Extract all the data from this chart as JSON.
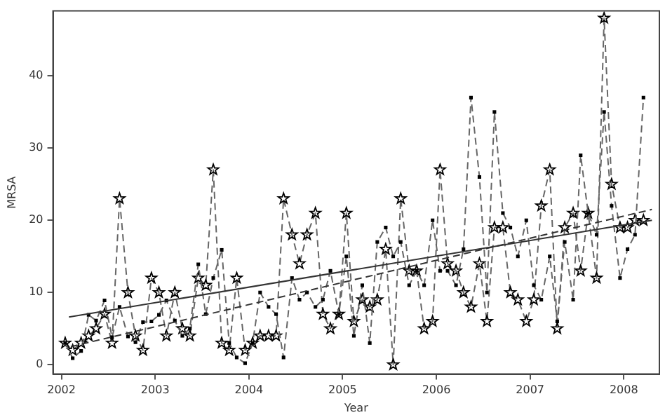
{
  "chart_data": {
    "type": "line",
    "xlabel": "Year",
    "ylabel": "MRSA",
    "xlim": [
      2001.91,
      2008.38
    ],
    "ylim": [
      -1.3,
      49
    ],
    "xticks": [
      2002,
      2003,
      2004,
      2005,
      2006,
      2007,
      2008
    ],
    "yticks": [
      0,
      10,
      20,
      30,
      40
    ],
    "grid": false,
    "legend": false,
    "series": [
      {
        "color": "#666666",
        "marker": "star",
        "line_style": "dashed",
        "x": [
          2002.04,
          2002.12,
          2002.21,
          2002.29,
          2002.37,
          2002.46,
          2002.54,
          2002.62,
          2002.71,
          2002.79,
          2002.87,
          2002.96,
          2003.04,
          2003.12,
          2003.21,
          2003.29,
          2003.37,
          2003.46,
          2003.54,
          2003.62,
          2003.71,
          2003.79,
          2003.87,
          2003.96,
          2004.04,
          2004.12,
          2004.21,
          2004.29,
          2004.37,
          2004.46,
          2004.54,
          2004.62,
          2004.71,
          2004.79,
          2004.87,
          2004.96,
          2005.04,
          2005.12,
          2005.21,
          2005.29,
          2005.37,
          2005.46,
          2005.54,
          2005.62,
          2005.71,
          2005.79,
          2005.87,
          2005.96,
          2006.04,
          2006.12,
          2006.21,
          2006.29,
          2006.37,
          2006.46,
          2006.54,
          2006.62,
          2006.71,
          2006.79,
          2006.87,
          2006.96,
          2007.04,
          2007.12,
          2007.21,
          2007.29,
          2007.37,
          2007.46,
          2007.54,
          2007.62,
          2007.71,
          2007.79,
          2007.87,
          2007.96,
          2008.04,
          2008.12,
          2008.21
        ],
        "values": [
          3,
          2,
          3,
          4,
          5,
          7,
          3,
          23,
          10,
          4,
          2,
          12,
          10,
          4,
          10,
          5,
          4,
          12,
          11,
          27,
          3,
          2,
          12,
          2,
          3,
          4,
          4,
          4,
          23,
          18,
          14,
          18,
          21,
          7,
          5,
          7,
          21,
          6,
          9,
          8,
          9,
          16,
          0,
          23,
          13,
          13,
          5,
          6,
          27,
          14,
          13,
          10,
          8,
          14,
          6,
          19,
          19,
          10,
          9,
          6,
          9,
          22,
          27,
          5,
          19,
          21,
          13,
          21,
          12,
          48,
          25,
          19,
          19,
          20,
          20
        ]
      },
      {
        "color": "#666666",
        "marker": "square",
        "line_style": "dashed",
        "x": [
          2002.04,
          2002.12,
          2002.21,
          2002.29,
          2002.37,
          2002.46,
          2002.54,
          2002.62,
          2002.71,
          2002.79,
          2002.87,
          2002.96,
          2003.04,
          2003.12,
          2003.21,
          2003.29,
          2003.37,
          2003.46,
          2003.54,
          2003.62,
          2003.71,
          2003.79,
          2003.87,
          2003.96,
          2004.04,
          2004.12,
          2004.21,
          2004.29,
          2004.37,
          2004.46,
          2004.54,
          2004.62,
          2004.71,
          2004.79,
          2004.87,
          2004.96,
          2005.04,
          2005.12,
          2005.21,
          2005.29,
          2005.37,
          2005.46,
          2005.54,
          2005.62,
          2005.71,
          2005.79,
          2005.87,
          2005.96,
          2006.04,
          2006.12,
          2006.21,
          2006.29,
          2006.37,
          2006.46,
          2006.54,
          2006.62,
          2006.71,
          2006.79,
          2006.87,
          2006.96,
          2007.04,
          2007.12,
          2007.21,
          2007.29,
          2007.37,
          2007.46,
          2007.54,
          2007.62,
          2007.71,
          2007.79,
          2007.87,
          2007.96,
          2008.04,
          2008.12,
          2008.21
        ],
        "values": [
          3,
          0.9,
          1.9,
          6.9,
          6.1,
          8.9,
          3.8,
          8,
          3.9,
          3.1,
          5.9,
          6,
          6.9,
          8.9,
          6.1,
          4,
          5,
          13.9,
          7,
          12,
          15.9,
          3,
          1,
          0.2,
          3,
          10,
          8,
          7,
          1,
          12,
          9,
          10,
          8,
          9,
          13,
          7,
          15,
          4,
          11,
          3,
          17,
          19,
          15,
          17,
          11,
          13,
          11,
          20,
          13,
          13,
          11,
          16,
          37,
          26,
          10,
          35,
          21,
          19,
          15,
          20,
          11,
          9,
          15,
          6,
          17,
          9,
          29,
          21,
          18,
          35,
          22,
          12,
          16,
          18,
          37
        ]
      },
      {
        "color": "#333333",
        "marker": "none",
        "line_style": "solid",
        "x": [
          2002.08,
          2008.3
        ],
        "values": [
          6.6,
          20
        ]
      },
      {
        "color": "#333333",
        "marker": "none",
        "line_style": "dashed",
        "x": [
          2002.1,
          2008.3
        ],
        "values": [
          2.5,
          21.5
        ]
      }
    ]
  }
}
